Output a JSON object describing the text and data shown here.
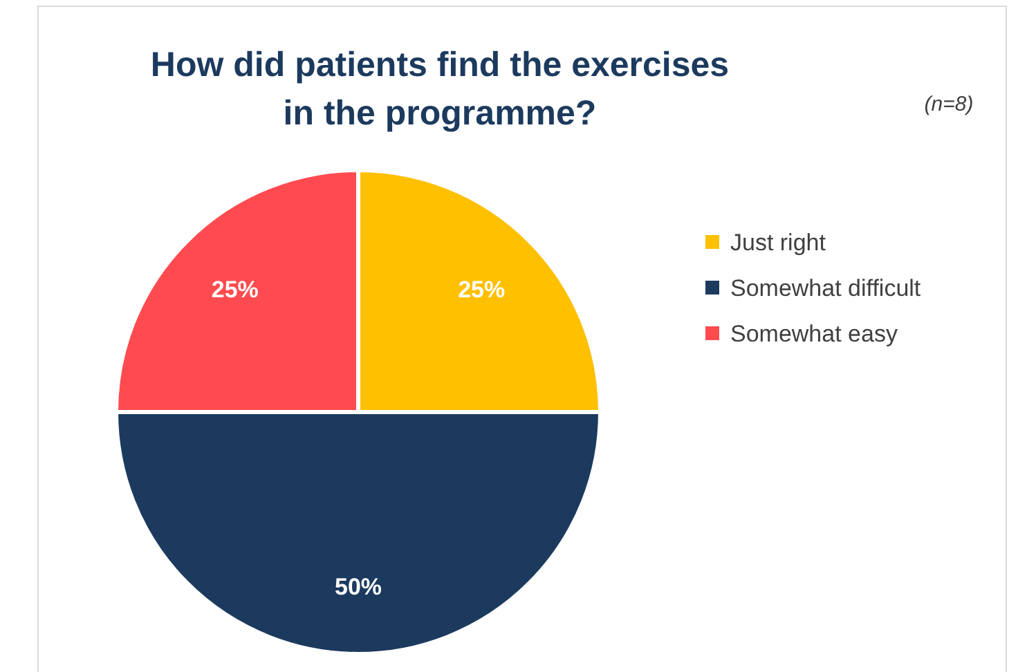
{
  "chart_data": {
    "type": "pie",
    "title": "How did patients find the exercises in the programme?",
    "annotations": [
      "(n=8)"
    ],
    "categories": [
      "Just right",
      "Somewhat difficult",
      "Somewhat easy"
    ],
    "values": [
      25,
      50,
      25
    ],
    "value_labels": [
      "25%",
      "50%",
      "25%"
    ],
    "colors": [
      "#ffc000",
      "#1c3a5e",
      "#ff4b4f"
    ],
    "legend": "right"
  }
}
